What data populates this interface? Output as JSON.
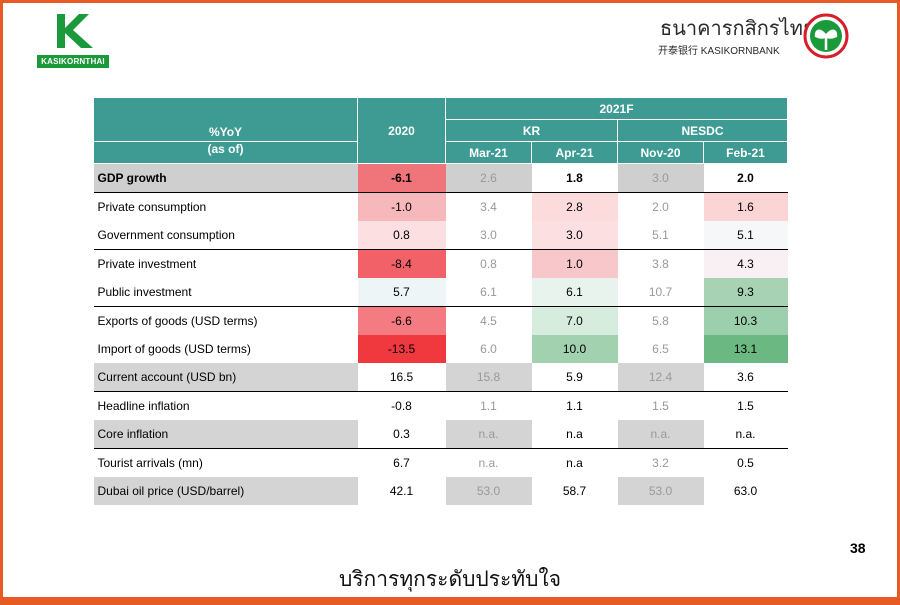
{
  "brand": {
    "left_label": "KASIKORNTHAI",
    "bank_thai": "ธนาคารกสิกรไทย",
    "bank_en": "开泰银行 KASIKORNBANK",
    "accent": "#e85a24",
    "green": "#1a9a3a",
    "teal": "#3d9b93"
  },
  "header": {
    "metric": "%YoY",
    "as_of": "(as of)",
    "col2020": "2020",
    "forecast": "2021F",
    "group_kr": "KR",
    "group_nesdc": "NESDC",
    "sub": [
      "Mar-21",
      "Apr-21",
      "Nov-20",
      "Feb-21"
    ]
  },
  "rows": [
    {
      "label": "GDP growth",
      "bold": true,
      "bg": "#cfcfcf",
      "sep": false,
      "v": [
        "-6.1",
        "2.6",
        "1.8",
        "3.0",
        "2.0"
      ],
      "bgs": [
        "#f0757a",
        "#cfcfcf",
        "#ffffff",
        "#cfcfcf",
        "#ffffff"
      ],
      "dim": [
        false,
        true,
        false,
        true,
        false
      ]
    },
    {
      "label": "Private consumption",
      "bold": false,
      "bg": "#ffffff",
      "sep": true,
      "v": [
        "-1.0",
        "3.4",
        "2.8",
        "2.0",
        "1.6"
      ],
      "bgs": [
        "#f6b8bb",
        "#ffffff",
        "#fbdbdc",
        "#ffffff",
        "#fbd5d6"
      ],
      "dim": [
        false,
        true,
        false,
        true,
        false
      ]
    },
    {
      "label": "Government consumption",
      "bold": false,
      "bg": "#ffffff",
      "sep": false,
      "v": [
        "0.8",
        "3.0",
        "3.0",
        "5.1",
        "5.1"
      ],
      "bgs": [
        "#fcdfe0",
        "#ffffff",
        "#fcdfe0",
        "#ffffff",
        "#f5f7f9"
      ],
      "dim": [
        false,
        true,
        false,
        true,
        false
      ]
    },
    {
      "label": "Private investment",
      "bold": false,
      "bg": "#ffffff",
      "sep": true,
      "v": [
        "-8.4",
        "0.8",
        "1.0",
        "3.8",
        "4.3"
      ],
      "bgs": [
        "#f26068",
        "#ffffff",
        "#f8c7ca",
        "#ffffff",
        "#f8f0f2"
      ],
      "dim": [
        false,
        true,
        false,
        true,
        false
      ]
    },
    {
      "label": "Public investment",
      "bold": false,
      "bg": "#ffffff",
      "sep": false,
      "v": [
        "5.7",
        "6.1",
        "6.1",
        "10.7",
        "9.3"
      ],
      "bgs": [
        "#eef5f6",
        "#ffffff",
        "#e9f3ee",
        "#ffffff",
        "#a7d3b4"
      ],
      "dim": [
        false,
        true,
        false,
        true,
        false
      ]
    },
    {
      "label": "Exports of goods (USD terms)",
      "bold": false,
      "bg": "#ffffff",
      "sep": true,
      "v": [
        "-6.6",
        "4.5",
        "7.0",
        "5.8",
        "10.3"
      ],
      "bgs": [
        "#f37b81",
        "#ffffff",
        "#d6ecdd",
        "#ffffff",
        "#9ccfab"
      ],
      "dim": [
        false,
        true,
        false,
        true,
        false
      ]
    },
    {
      "label": "Import of goods (USD terms)",
      "bold": false,
      "bg": "#ffffff",
      "sep": false,
      "v": [
        "-13.5",
        "6.0",
        "10.0",
        "6.5",
        "13.1"
      ],
      "bgs": [
        "#f0383f",
        "#ffffff",
        "#a2d1b0",
        "#ffffff",
        "#6bb882"
      ],
      "dim": [
        false,
        true,
        false,
        true,
        false
      ]
    },
    {
      "label": "Current account (USD bn)",
      "bold": false,
      "bg": "#d4d4d4",
      "sep": false,
      "v": [
        "16.5",
        "15.8",
        "5.9",
        "12.4",
        "3.6"
      ],
      "bgs": [
        "#ffffff",
        "#d4d4d4",
        "#ffffff",
        "#d4d4d4",
        "#ffffff"
      ],
      "dim": [
        false,
        true,
        false,
        true,
        false
      ]
    },
    {
      "label": "Headline inflation",
      "bold": false,
      "bg": "#ffffff",
      "sep": true,
      "v": [
        "-0.8",
        "1.1",
        "1.1",
        "1.5",
        "1.5"
      ],
      "bgs": [
        "#ffffff",
        "#ffffff",
        "#ffffff",
        "#ffffff",
        "#ffffff"
      ],
      "dim": [
        false,
        true,
        false,
        true,
        false
      ]
    },
    {
      "label": "Core inflation",
      "bold": false,
      "bg": "#d4d4d4",
      "sep": false,
      "v": [
        "0.3",
        "n.a.",
        "n.a",
        "n.a.",
        "n.a."
      ],
      "bgs": [
        "#ffffff",
        "#d4d4d4",
        "#ffffff",
        "#d4d4d4",
        "#ffffff"
      ],
      "dim": [
        false,
        true,
        false,
        true,
        false
      ]
    },
    {
      "label": "Tourist arrivals (mn)",
      "bold": false,
      "bg": "#ffffff",
      "sep": true,
      "v": [
        "6.7",
        "n.a.",
        "n.a",
        "3.2",
        "0.5"
      ],
      "bgs": [
        "#ffffff",
        "#ffffff",
        "#ffffff",
        "#ffffff",
        "#ffffff"
      ],
      "dim": [
        false,
        true,
        false,
        true,
        false
      ]
    },
    {
      "label": "Dubai oil price (USD/barrel)",
      "bold": false,
      "bg": "#d4d4d4",
      "sep": false,
      "v": [
        "42.1",
        "53.0",
        "58.7",
        "53.0",
        "63.0"
      ],
      "bgs": [
        "#ffffff",
        "#d4d4d4",
        "#ffffff",
        "#d4d4d4",
        "#ffffff"
      ],
      "dim": [
        false,
        true,
        false,
        true,
        false
      ]
    }
  ],
  "page_number": "38",
  "slogan": "บริการทุกระดับประทับใจ"
}
